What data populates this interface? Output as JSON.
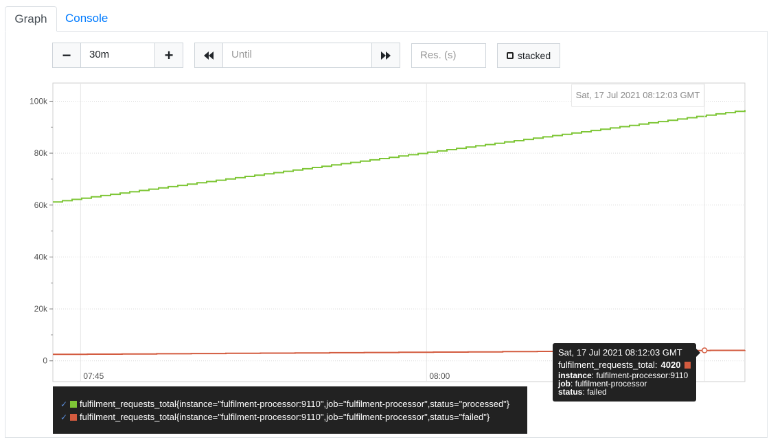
{
  "tabs": [
    {
      "label": "Graph",
      "active": true
    },
    {
      "label": "Console",
      "active": false
    }
  ],
  "controls": {
    "minus_label": "−",
    "range_value": "30m",
    "plus_label": "+",
    "back_icon": "⏪",
    "until_placeholder": "Until",
    "forward_icon": "⏩",
    "res_placeholder": "Res. (s)",
    "stacked_label": "stacked"
  },
  "hover_date": "Sat, 17 Jul 2021 08:12:03 GMT",
  "tooltip": {
    "time": "Sat, 17 Jul 2021 08:12:03 GMT",
    "metric": "fulfilment_requests_total:",
    "value": "4020",
    "instance_key": "instance",
    "instance_val": ": fulfilment-processor:9110",
    "job_key": "job",
    "job_val": ": fulfilment-processor",
    "status_key": "status",
    "status_val": ": failed"
  },
  "legend": [
    {
      "text": "fulfilment_requests_total{instance=\"fulfilment-processor:9110\",job=\"fulfilment-processor\",status=\"processed\"}",
      "color": "#7ec636"
    },
    {
      "text": "fulfilment_requests_total{instance=\"fulfilment-processor:9110\",job=\"fulfilment-processor\",status=\"failed\"}",
      "color": "#d35b3f"
    }
  ],
  "chart_data": {
    "type": "line",
    "x_ticks": [
      {
        "minute": 45,
        "label": "07:45"
      },
      {
        "minute": 60,
        "label": "08:00"
      }
    ],
    "x_range_minutes": [
      43.8,
      73.8
    ],
    "y_ticks": [
      {
        "value": 0,
        "label": "0"
      },
      {
        "value": 20000,
        "label": "20k"
      },
      {
        "value": 40000,
        "label": "40k"
      },
      {
        "value": 60000,
        "label": "60k"
      },
      {
        "value": 80000,
        "label": "80k"
      },
      {
        "value": 100000,
        "label": "100k"
      }
    ],
    "ylim": [
      -8000,
      107000
    ],
    "grid": true,
    "series": [
      {
        "color": "#7ec636",
        "start": 61200,
        "end": 96600,
        "steps": 72
      },
      {
        "color": "#d35b3f",
        "start": 2500,
        "end": 4100,
        "steps": 20
      }
    ],
    "hover": {
      "series": 1,
      "minute": 72.05,
      "value": 4020
    }
  }
}
